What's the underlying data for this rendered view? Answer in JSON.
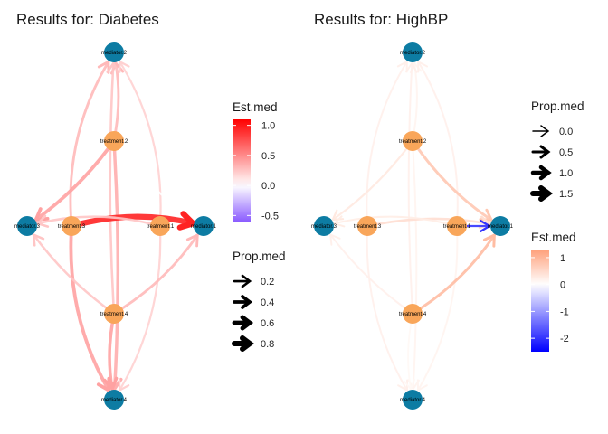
{
  "panels": [
    {
      "id": "diabetes",
      "title": "Results for: Diabetes",
      "nodes": [
        {
          "id": "mediator.2",
          "label": "mediator.2",
          "kind": "mediator"
        },
        {
          "id": "treatment.2",
          "label": "treatment.2",
          "kind": "treatment"
        },
        {
          "id": "mediator.3",
          "label": "mediator.3",
          "kind": "mediator"
        },
        {
          "id": "treatment.3",
          "label": "treatment.3",
          "kind": "treatment"
        },
        {
          "id": "treatment.1",
          "label": "treatment.1",
          "kind": "treatment"
        },
        {
          "id": "mediator.1",
          "label": "mediator.1",
          "kind": "mediator"
        },
        {
          "id": "treatment.4",
          "label": "treatment.4",
          "kind": "treatment"
        },
        {
          "id": "mediator.4",
          "label": "mediator.4",
          "kind": "mediator"
        }
      ],
      "edges": [
        {
          "from": "treatment.2",
          "to": "mediator.2",
          "est_med": 0.3,
          "prop_med": 0.3
        },
        {
          "from": "treatment.3",
          "to": "mediator.2",
          "est_med": 0.3,
          "prop_med": 0.3
        },
        {
          "from": "treatment.1",
          "to": "mediator.2",
          "est_med": 0.2,
          "prop_med": 0.2
        },
        {
          "from": "treatment.4",
          "to": "mediator.2",
          "est_med": 0.25,
          "prop_med": 0.25
        },
        {
          "from": "treatment.2",
          "to": "mediator.3",
          "est_med": 0.4,
          "prop_med": 0.45
        },
        {
          "from": "treatment.2",
          "to": "mediator.1",
          "est_med": 0.0,
          "prop_med": 0.2
        },
        {
          "from": "treatment.2",
          "to": "mediator.4",
          "est_med": 0.35,
          "prop_med": 0.4
        },
        {
          "from": "treatment.3",
          "to": "mediator.1",
          "est_med": 0.95,
          "prop_med": 0.85
        },
        {
          "from": "treatment.3",
          "to": "mediator.4",
          "est_med": 0.4,
          "prop_med": 0.45
        },
        {
          "from": "treatment.1",
          "to": "mediator.3",
          "est_med": 0.25,
          "prop_med": 0.25
        },
        {
          "from": "treatment.1",
          "to": "mediator.4",
          "est_med": 0.2,
          "prop_med": 0.2
        },
        {
          "from": "treatment.4",
          "to": "mediator.3",
          "est_med": 0.25,
          "prop_med": 0.25
        },
        {
          "from": "treatment.4",
          "to": "mediator.1",
          "est_med": 0.3,
          "prop_med": 0.3
        },
        {
          "from": "treatment.4",
          "to": "mediator.4",
          "est_med": 0.4,
          "prop_med": 0.4
        }
      ],
      "legends": [
        {
          "type": "color",
          "title": "Est.med",
          "ticks": [
            "1.0",
            "0.5",
            "0.0",
            "-0.5"
          ],
          "tick_values": [
            1.0,
            0.5,
            0.0,
            -0.5
          ],
          "range": [
            -0.6,
            1.1
          ],
          "colors": {
            "low": "#8a5cff",
            "mid": "#ffffff",
            "high": "#ff0000"
          }
        },
        {
          "type": "width",
          "title": "Prop.med",
          "ticks": [
            "0.2",
            "0.4",
            "0.6",
            "0.8"
          ],
          "tick_values": [
            0.2,
            0.4,
            0.6,
            0.8
          ]
        }
      ]
    },
    {
      "id": "highbp",
      "title": "Results for: HighBP",
      "nodes": [
        {
          "id": "mediator.2",
          "label": "mediator.2",
          "kind": "mediator"
        },
        {
          "id": "treatment.2",
          "label": "treatment.2",
          "kind": "treatment"
        },
        {
          "id": "mediator.3",
          "label": "mediator.3",
          "kind": "mediator"
        },
        {
          "id": "treatment.3",
          "label": "treatment.3",
          "kind": "treatment"
        },
        {
          "id": "treatment.1",
          "label": "treatment.1",
          "kind": "treatment"
        },
        {
          "id": "mediator.1",
          "label": "mediator.1",
          "kind": "mediator"
        },
        {
          "id": "treatment.4",
          "label": "treatment.4",
          "kind": "treatment"
        },
        {
          "id": "mediator.4",
          "label": "mediator.4",
          "kind": "mediator"
        }
      ],
      "edges": [
        {
          "from": "treatment.2",
          "to": "mediator.2",
          "est_med": 0.15,
          "prop_med": 0.3
        },
        {
          "from": "treatment.3",
          "to": "mediator.2",
          "est_med": 0.2,
          "prop_med": 0.3
        },
        {
          "from": "treatment.1",
          "to": "mediator.2",
          "est_med": 0.2,
          "prop_med": 0.3
        },
        {
          "from": "treatment.4",
          "to": "mediator.2",
          "est_med": 0.2,
          "prop_med": 0.3
        },
        {
          "from": "treatment.2",
          "to": "mediator.3",
          "est_med": 0.3,
          "prop_med": 0.35
        },
        {
          "from": "treatment.2",
          "to": "mediator.1",
          "est_med": 0.75,
          "prop_med": 0.6
        },
        {
          "from": "treatment.2",
          "to": "mediator.4",
          "est_med": 0.15,
          "prop_med": 0.3
        },
        {
          "from": "treatment.3",
          "to": "mediator.1",
          "est_med": 0.45,
          "prop_med": 0.5
        },
        {
          "from": "treatment.3",
          "to": "mediator.4",
          "est_med": 0.2,
          "prop_med": 0.3
        },
        {
          "from": "treatment.1",
          "to": "mediator.1",
          "est_med": -2.0,
          "prop_med": 0.4
        },
        {
          "from": "treatment.1",
          "to": "mediator.3",
          "est_med": 0.25,
          "prop_med": 0.3
        },
        {
          "from": "treatment.1",
          "to": "mediator.4",
          "est_med": 0.15,
          "prop_med": 0.3
        },
        {
          "from": "treatment.4",
          "to": "mediator.3",
          "est_med": 0.2,
          "prop_med": 0.3
        },
        {
          "from": "treatment.4",
          "to": "mediator.1",
          "est_med": 0.9,
          "prop_med": 0.6
        },
        {
          "from": "treatment.4",
          "to": "mediator.4",
          "est_med": 0.1,
          "prop_med": 0.25
        }
      ],
      "legends": [
        {
          "type": "width",
          "title": "Prop.med",
          "ticks": [
            "0.0",
            "0.5",
            "1.0",
            "1.5"
          ],
          "tick_values": [
            0.0,
            0.5,
            1.0,
            1.5
          ]
        },
        {
          "type": "color",
          "title": "Est.med",
          "ticks": [
            "1",
            "0",
            "-1",
            "-2"
          ],
          "tick_values": [
            1,
            0,
            -1,
            -2
          ],
          "range": [
            -2.5,
            1.3
          ],
          "colors": {
            "low": "#0000ff",
            "mid": "#ffffff",
            "high": "#ffa07a"
          }
        }
      ]
    }
  ],
  "colors": {
    "mediator_node": "#0d7ca3",
    "treatment_node": "#f9a65a",
    "arrow_legend": "#000000"
  }
}
